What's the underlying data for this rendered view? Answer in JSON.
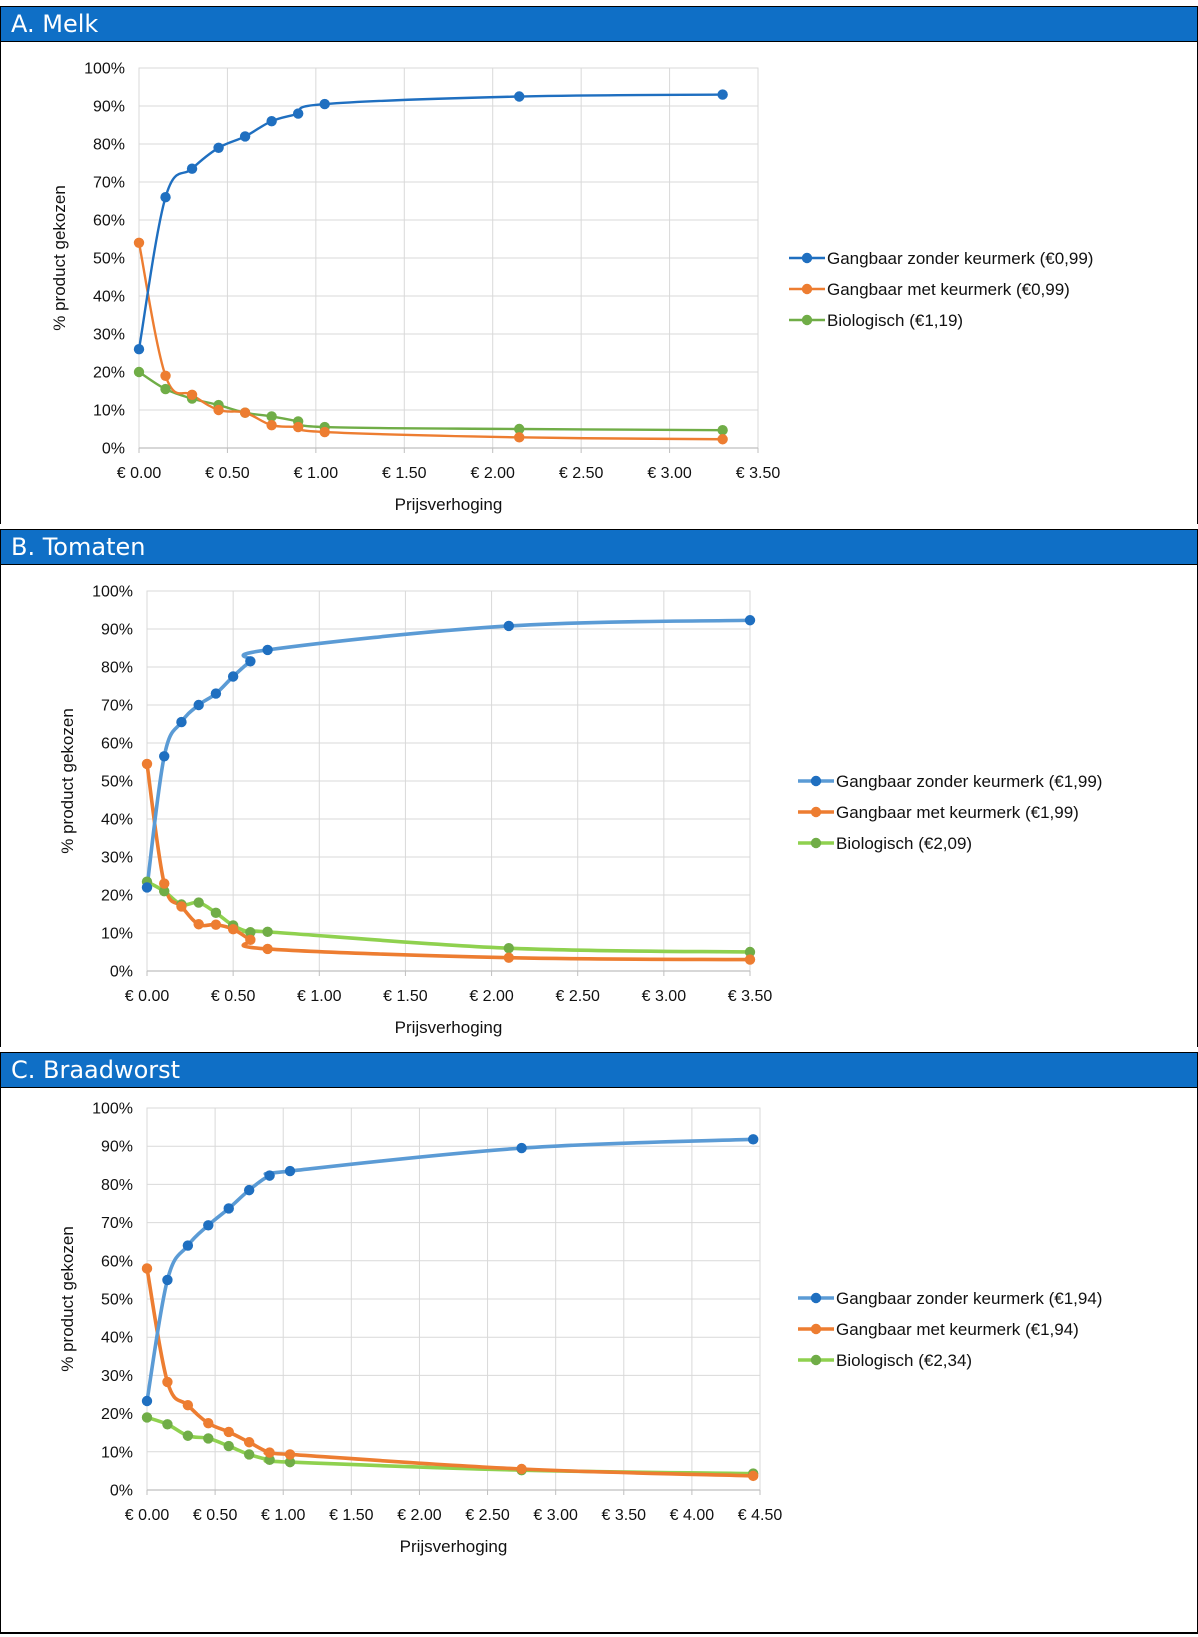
{
  "chart_data": [
    {
      "type": "line",
      "panel_title": "A. Melk",
      "xlabel": "Prijsverhoging",
      "ylabel": "% product gekozen",
      "xlim": [
        0,
        3.5
      ],
      "ylim": [
        0,
        100
      ],
      "x_ticks": [
        "€ 0.00",
        "€ 0.50",
        "€ 1.00",
        "€ 1.50",
        "€ 2.00",
        "€ 2.50",
        "€ 3.00",
        "€ 3.50"
      ],
      "y_ticks": [
        "0%",
        "10%",
        "20%",
        "30%",
        "40%",
        "50%",
        "60%",
        "70%",
        "80%",
        "90%",
        "100%"
      ],
      "grid": true,
      "legend": "right",
      "series": [
        {
          "name": "Gangbaar zonder keurmerk (€0,99)",
          "color": "#1f6fc0",
          "x": [
            0,
            0.15,
            0.3,
            0.45,
            0.6,
            0.75,
            0.9,
            1.05,
            2.15,
            3.3
          ],
          "y": [
            26,
            66,
            73.5,
            79,
            82,
            86,
            88,
            90.5,
            92.5,
            93
          ]
        },
        {
          "name": "Gangbaar met keurmerk (€0,99)",
          "color": "#ed7d31",
          "x": [
            0,
            0.15,
            0.3,
            0.45,
            0.6,
            0.75,
            0.9,
            1.05,
            2.15,
            3.3
          ],
          "y": [
            54,
            19,
            14,
            10,
            9.3,
            6,
            5.5,
            4.2,
            2.8,
            2.3
          ]
        },
        {
          "name": "Biologisch (€1,19)",
          "color": "#70ad47",
          "x": [
            0,
            0.15,
            0.3,
            0.45,
            0.6,
            0.75,
            0.9,
            1.05,
            2.15,
            3.3
          ],
          "y": [
            20,
            15.5,
            13,
            11.3,
            9.3,
            8.3,
            7,
            5.5,
            5,
            4.7
          ]
        }
      ]
    },
    {
      "type": "line",
      "panel_title": "B. Tomaten",
      "xlabel": "Prijsverhoging",
      "ylabel": "% product gekozen",
      "xlim": [
        0,
        3.5
      ],
      "ylim": [
        0,
        100
      ],
      "x_ticks": [
        "€ 0.00",
        "€ 0.50",
        "€ 1.00",
        "€ 1.50",
        "€ 2.00",
        "€ 2.50",
        "€ 3.00",
        "€ 3.50"
      ],
      "y_ticks": [
        "0%",
        "10%",
        "20%",
        "30%",
        "40%",
        "50%",
        "60%",
        "70%",
        "80%",
        "90%",
        "100%"
      ],
      "grid": true,
      "legend": "right",
      "series": [
        {
          "name": "Gangbaar zonder keurmerk (€1,99)",
          "color": "#1f6fc0",
          "line_color": "#5b9bd5",
          "x": [
            0,
            0.1,
            0.2,
            0.3,
            0.4,
            0.5,
            0.6,
            0.7,
            2.1,
            3.5
          ],
          "y": [
            22,
            56.5,
            65.5,
            70,
            73,
            77.5,
            81.5,
            84.5,
            90.8,
            92.3
          ]
        },
        {
          "name": "Gangbaar met keurmerk (€1,99)",
          "color": "#ed7d31",
          "x": [
            0,
            0.1,
            0.2,
            0.3,
            0.4,
            0.5,
            0.6,
            0.7,
            2.1,
            3.5
          ],
          "y": [
            54.5,
            23,
            17,
            12.3,
            12.2,
            11,
            8.2,
            5.8,
            3.5,
            3
          ]
        },
        {
          "name": "Biologisch (€2,09)",
          "color": "#70ad47",
          "line_color": "#8fd14f",
          "x": [
            0,
            0.1,
            0.2,
            0.3,
            0.4,
            0.5,
            0.6,
            0.7,
            2.1,
            3.5
          ],
          "y": [
            23.5,
            21,
            17.5,
            18,
            15.3,
            12,
            10.2,
            10.3,
            6,
            5
          ]
        }
      ]
    },
    {
      "type": "line",
      "panel_title": "C. Braadworst",
      "xlabel": "Prijsverhoging",
      "ylabel": "% product gekozen",
      "xlim": [
        0,
        4.5
      ],
      "ylim": [
        0,
        100
      ],
      "x_ticks": [
        "€ 0.00",
        "€ 0.50",
        "€ 1.00",
        "€ 1.50",
        "€ 2.00",
        "€ 2.50",
        "€ 3.00",
        "€ 3.50",
        "€ 4.00",
        "€ 4.50"
      ],
      "y_ticks": [
        "0%",
        "10%",
        "20%",
        "30%",
        "40%",
        "50%",
        "60%",
        "70%",
        "80%",
        "90%",
        "100%"
      ],
      "grid": true,
      "legend": "right",
      "series": [
        {
          "name": "Gangbaar zonder keurmerk (€1,94)",
          "color": "#1f6fc0",
          "line_color": "#5b9bd5",
          "x": [
            0,
            0.15,
            0.3,
            0.45,
            0.6,
            0.75,
            0.9,
            1.05,
            2.75,
            4.45
          ],
          "y": [
            23.3,
            55,
            64,
            69.3,
            73.7,
            78.5,
            82.3,
            83.5,
            89.5,
            91.8
          ]
        },
        {
          "name": "Gangbaar met keurmerk (€1,94)",
          "color": "#ed7d31",
          "x": [
            0,
            0.15,
            0.3,
            0.45,
            0.6,
            0.75,
            0.9,
            1.05,
            2.75,
            4.45
          ],
          "y": [
            58,
            28.3,
            22.2,
            17.5,
            15.2,
            12.5,
            9.8,
            9.3,
            5.5,
            3.7
          ]
        },
        {
          "name": "Biologisch (€2,34)",
          "color": "#70ad47",
          "line_color": "#8fd14f",
          "x": [
            0,
            0.15,
            0.3,
            0.45,
            0.6,
            0.75,
            0.9,
            1.05,
            2.75,
            4.45
          ],
          "y": [
            19,
            17.2,
            14.2,
            13.5,
            11.5,
            9.3,
            7.9,
            7.3,
            5.2,
            4.3
          ]
        }
      ]
    }
  ]
}
